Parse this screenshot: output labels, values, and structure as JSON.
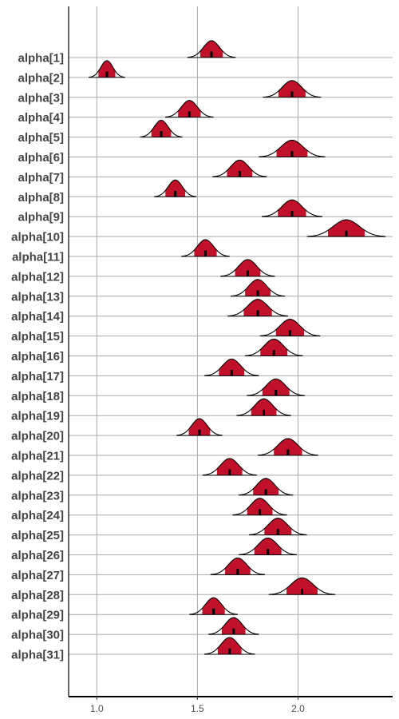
{
  "chart_data": {
    "type": "ridgeline-interval",
    "title": "",
    "xlabel": "",
    "ylabel": "",
    "xlim": [
      0.86,
      2.47
    ],
    "x_ticks": [
      1.0,
      1.5,
      2.0
    ],
    "x_tick_labels": [
      "1.0",
      "1.5",
      "2.0"
    ],
    "grid": true,
    "colors": {
      "density_fill": "#c0102a",
      "outline": "#000000",
      "median": "#000000",
      "gridline": "#aaaaaa",
      "axis": "#000000"
    },
    "parameters": [
      {
        "label": "alpha[1]",
        "median": 1.57,
        "spread": 0.04
      },
      {
        "label": "alpha[2]",
        "median": 1.05,
        "spread": 0.03
      },
      {
        "label": "alpha[3]",
        "median": 1.97,
        "spread": 0.048
      },
      {
        "label": "alpha[4]",
        "median": 1.46,
        "spread": 0.04
      },
      {
        "label": "alpha[5]",
        "median": 1.32,
        "spread": 0.035
      },
      {
        "label": "alpha[6]",
        "median": 1.97,
        "spread": 0.055
      },
      {
        "label": "alpha[7]",
        "median": 1.71,
        "spread": 0.045
      },
      {
        "label": "alpha[8]",
        "median": 1.39,
        "spread": 0.035
      },
      {
        "label": "alpha[9]",
        "median": 1.97,
        "spread": 0.05
      },
      {
        "label": "alpha[10]",
        "median": 2.24,
        "spread": 0.065
      },
      {
        "label": "alpha[11]",
        "median": 1.54,
        "spread": 0.04
      },
      {
        "label": "alpha[12]",
        "median": 1.75,
        "spread": 0.045
      },
      {
        "label": "alpha[13]",
        "median": 1.8,
        "spread": 0.045
      },
      {
        "label": "alpha[14]",
        "median": 1.8,
        "spread": 0.05
      },
      {
        "label": "alpha[15]",
        "median": 1.96,
        "spread": 0.05
      },
      {
        "label": "alpha[16]",
        "median": 1.88,
        "spread": 0.048
      },
      {
        "label": "alpha[17]",
        "median": 1.67,
        "spread": 0.045
      },
      {
        "label": "alpha[18]",
        "median": 1.89,
        "spread": 0.048
      },
      {
        "label": "alpha[19]",
        "median": 1.83,
        "spread": 0.045
      },
      {
        "label": "alpha[20]",
        "median": 1.51,
        "spread": 0.038
      },
      {
        "label": "alpha[21]",
        "median": 1.95,
        "spread": 0.05
      },
      {
        "label": "alpha[22]",
        "median": 1.66,
        "spread": 0.045
      },
      {
        "label": "alpha[23]",
        "median": 1.84,
        "spread": 0.045
      },
      {
        "label": "alpha[24]",
        "median": 1.81,
        "spread": 0.045
      },
      {
        "label": "alpha[25]",
        "median": 1.9,
        "spread": 0.048
      },
      {
        "label": "alpha[26]",
        "median": 1.85,
        "spread": 0.048
      },
      {
        "label": "alpha[27]",
        "median": 1.7,
        "spread": 0.045
      },
      {
        "label": "alpha[28]",
        "median": 2.02,
        "spread": 0.055
      },
      {
        "label": "alpha[29]",
        "median": 1.58,
        "spread": 0.04
      },
      {
        "label": "alpha[30]",
        "median": 1.68,
        "spread": 0.042
      },
      {
        "label": "alpha[31]",
        "median": 1.66,
        "spread": 0.042
      }
    ]
  }
}
